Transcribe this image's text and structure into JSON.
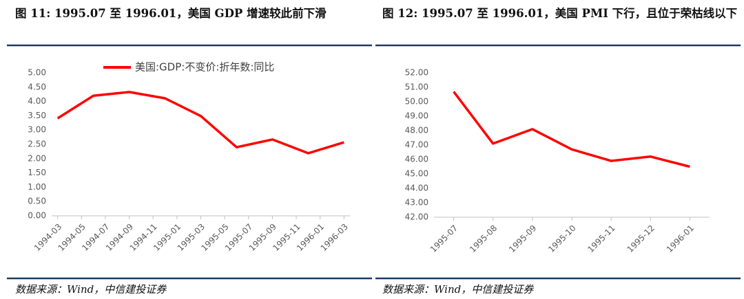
{
  "chart_data": [
    {
      "type": "line",
      "title": "图 11: 1995.07 至 1996.01，美国 GDP 增速较此前下滑",
      "categories": [
        "1994-03",
        "1994-05",
        "1994-07",
        "1994-09",
        "1994-11",
        "1995-01",
        "1995-03",
        "1995-05",
        "1995-07",
        "1995-09",
        "1995-11",
        "1996-01",
        "1996-03"
      ],
      "series": [
        {
          "name": "美国:GDP:不变价:折年数:同比",
          "color": "#ff0000",
          "x": [
            "1994-03",
            "1994-06",
            "1994-09",
            "1994-12",
            "1995-03",
            "1995-06",
            "1995-09",
            "1995-12",
            "1996-03"
          ],
          "values": [
            3.41,
            4.2,
            4.33,
            4.11,
            3.49,
            2.4,
            2.67,
            2.19,
            2.57
          ]
        }
      ],
      "ylim": [
        0,
        5
      ],
      "yticks": [
        {
          "value": 0,
          "label": "0.00"
        },
        {
          "value": 0.5,
          "label": "0.50"
        },
        {
          "value": 1,
          "label": "1.00"
        },
        {
          "value": 1.5,
          "label": "1.50"
        },
        {
          "value": 2,
          "label": "2.00"
        },
        {
          "value": 2.5,
          "label": "2.50"
        },
        {
          "value": 3,
          "label": "3.00"
        },
        {
          "value": 3.5,
          "label": "3.50"
        },
        {
          "value": 4,
          "label": "4.00"
        },
        {
          "value": 4.5,
          "label": "4.50"
        },
        {
          "value": 5,
          "label": "5.00"
        }
      ],
      "legend": "top",
      "source": "数据来源：Wind，中信建投证券"
    },
    {
      "type": "line",
      "title": "图 12: 1995.07 至 1996.01，美国 PMI 下行，且位于荣枯线以下",
      "categories": [
        "1995-07",
        "1995-08",
        "1995-09",
        "1995-10",
        "1995-11",
        "1995-12",
        "1996-01"
      ],
      "series": [
        {
          "color": "#ff0000",
          "values": [
            50.7,
            47.1,
            48.1,
            46.7,
            45.9,
            46.2,
            45.5
          ]
        }
      ],
      "ylim": [
        42,
        52
      ],
      "yticks": [
        {
          "value": 42,
          "label": "42.00"
        },
        {
          "value": 43,
          "label": "43.00"
        },
        {
          "value": 44,
          "label": "44.00"
        },
        {
          "value": 45,
          "label": "45.00"
        },
        {
          "value": 46,
          "label": "46.00"
        },
        {
          "value": 47,
          "label": "47.00"
        },
        {
          "value": 48,
          "label": "48.00"
        },
        {
          "value": 49,
          "label": "49.00"
        },
        {
          "value": 50,
          "label": "50.00"
        },
        {
          "value": 51,
          "label": "51.00"
        },
        {
          "value": 52,
          "label": "52.00"
        }
      ],
      "source": "数据来源：Wind，中信建投证券"
    }
  ]
}
